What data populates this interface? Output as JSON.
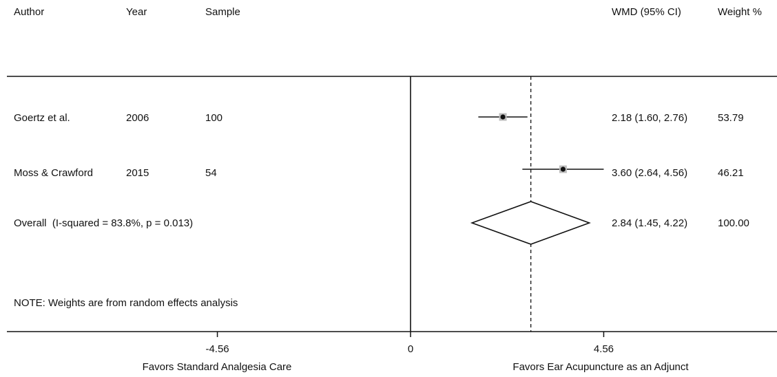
{
  "headers": {
    "author": "Author",
    "year": "Year",
    "sample": "Sample",
    "wmd": "WMD (95% CI)",
    "weight": "Weight %"
  },
  "studies": [
    {
      "author": "Goertz et al.",
      "year": "2006",
      "sample": "100",
      "wmd": 2.18,
      "ci_low": 1.6,
      "ci_high": 2.76,
      "wmd_text": "2.18 (1.60, 2.76)",
      "weight": "53.79"
    },
    {
      "author": "Moss & Crawford",
      "year": "2015",
      "sample": "54",
      "wmd": 3.6,
      "ci_low": 2.64,
      "ci_high": 4.56,
      "wmd_text": "3.60 (2.64, 4.56)",
      "weight": "46.21"
    }
  ],
  "overall": {
    "label": "Overall  (I-squared = 83.8%, p = 0.013)",
    "wmd": 2.84,
    "ci_low": 1.45,
    "ci_high": 4.22,
    "wmd_text": "2.84 (1.45, 4.22)",
    "weight": "100.00"
  },
  "note": "NOTE: Weights are from random effects analysis",
  "chart_data": {
    "type": "forest",
    "x_range": [
      -6.0,
      5.5
    ],
    "null_line": 0,
    "pooled_line": 2.84,
    "ticks": [
      {
        "value": -4.56,
        "label": "-4.56"
      },
      {
        "value": 0,
        "label": "0"
      },
      {
        "value": 4.56,
        "label": "4.56"
      }
    ],
    "favors_left": "Favors Standard Analgesia Care",
    "favors_right": "Favors Ear Acupuncture as an Adjunct",
    "colors": {
      "line": "#111111",
      "marker_box": "#bdbdbd"
    }
  }
}
